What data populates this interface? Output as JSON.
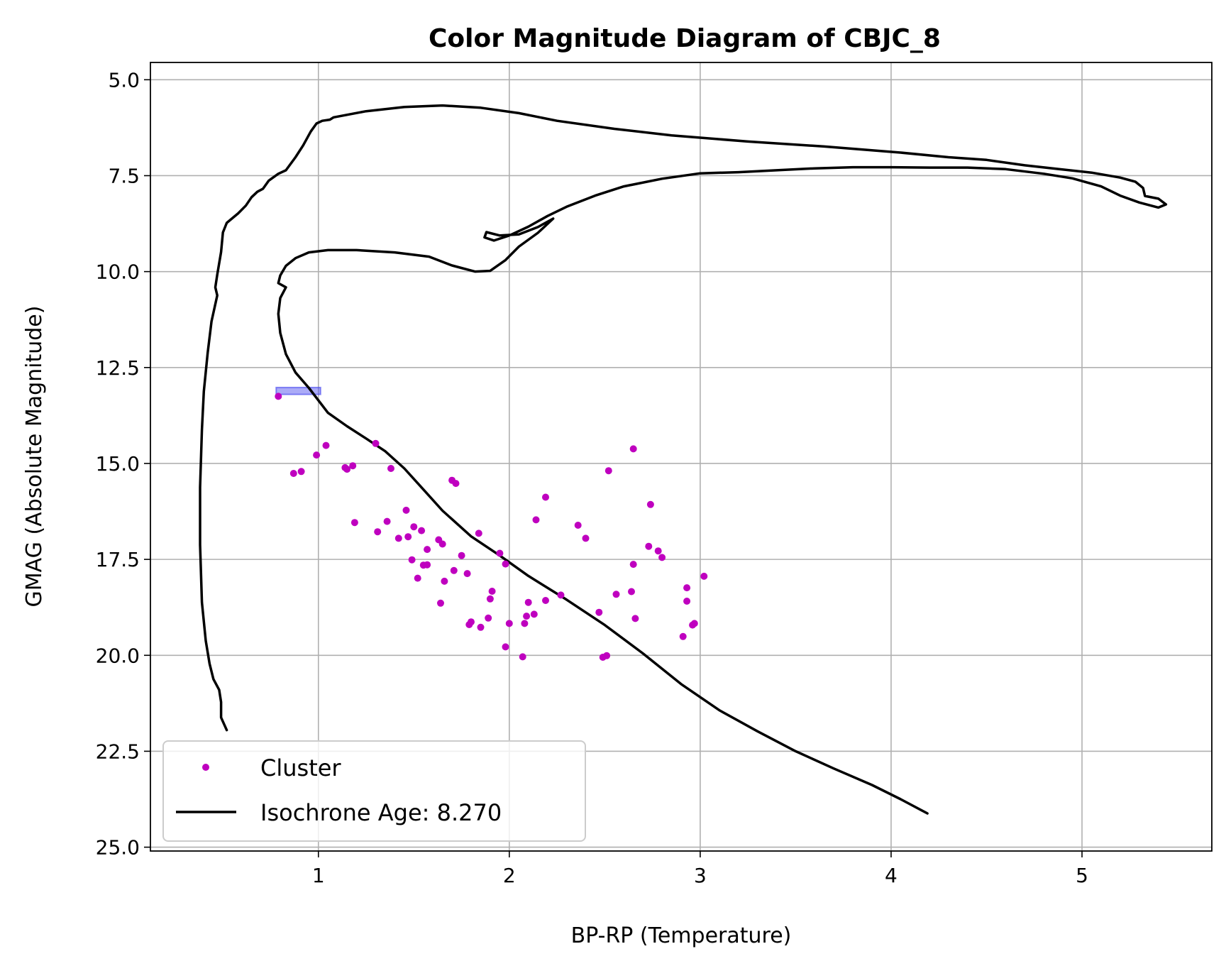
{
  "chart_data": {
    "type": "scatter",
    "title": "Color Magnitude Diagram of CBJC_8",
    "xlabel": "BP-RP (Temperature)",
    "ylabel": "GMAG (Absolute Magnitude)",
    "xlim": [
      0.12,
      5.68
    ],
    "ylim": [
      25.1,
      4.55
    ],
    "y_inverted": true,
    "grid": true,
    "legend_position": "lower-left",
    "x_ticks": [
      {
        "value": 1,
        "label": "1"
      },
      {
        "value": 2,
        "label": "2"
      },
      {
        "value": 3,
        "label": "3"
      },
      {
        "value": 4,
        "label": "4"
      },
      {
        "value": 5,
        "label": "5"
      }
    ],
    "y_ticks": [
      {
        "value": 5.0,
        "label": "5.0"
      },
      {
        "value": 7.5,
        "label": "7.5"
      },
      {
        "value": 10.0,
        "label": "10.0"
      },
      {
        "value": 12.5,
        "label": "12.5"
      },
      {
        "value": 15.0,
        "label": "15.0"
      },
      {
        "value": 17.5,
        "label": "17.5"
      },
      {
        "value": 20.0,
        "label": "20.0"
      },
      {
        "value": 22.5,
        "label": "22.5"
      },
      {
        "value": 25.0,
        "label": "25.0"
      }
    ],
    "series": [
      {
        "name": "Cluster",
        "kind": "scatter",
        "color": "#bf00bf",
        "points": [
          [
            0.79,
            13.25
          ],
          [
            0.87,
            15.26
          ],
          [
            0.91,
            15.21
          ],
          [
            0.99,
            14.78
          ],
          [
            1.04,
            14.53
          ],
          [
            1.14,
            15.11
          ],
          [
            1.15,
            15.15
          ],
          [
            1.18,
            15.06
          ],
          [
            1.19,
            16.54
          ],
          [
            1.3,
            14.48
          ],
          [
            1.31,
            16.78
          ],
          [
            1.36,
            16.51
          ],
          [
            1.38,
            15.13
          ],
          [
            1.42,
            16.95
          ],
          [
            1.46,
            16.22
          ],
          [
            1.47,
            16.91
          ],
          [
            1.49,
            17.51
          ],
          [
            1.5,
            16.65
          ],
          [
            1.52,
            17.99
          ],
          [
            1.54,
            16.75
          ],
          [
            1.55,
            17.65
          ],
          [
            1.57,
            17.64
          ],
          [
            1.57,
            17.24
          ],
          [
            1.63,
            16.99
          ],
          [
            1.64,
            18.64
          ],
          [
            1.65,
            17.1
          ],
          [
            1.66,
            18.07
          ],
          [
            1.7,
            15.44
          ],
          [
            1.71,
            17.79
          ],
          [
            1.72,
            15.52
          ],
          [
            1.75,
            17.4
          ],
          [
            1.78,
            17.87
          ],
          [
            1.79,
            19.2
          ],
          [
            1.8,
            19.13
          ],
          [
            1.84,
            16.82
          ],
          [
            1.85,
            19.27
          ],
          [
            1.89,
            19.03
          ],
          [
            1.9,
            18.53
          ],
          [
            1.91,
            18.33
          ],
          [
            1.95,
            17.34
          ],
          [
            1.98,
            17.62
          ],
          [
            1.98,
            19.78
          ],
          [
            2.0,
            19.17
          ],
          [
            2.07,
            20.04
          ],
          [
            2.08,
            19.17
          ],
          [
            2.09,
            18.98
          ],
          [
            2.1,
            18.62
          ],
          [
            2.13,
            18.93
          ],
          [
            2.14,
            16.47
          ],
          [
            2.19,
            15.88
          ],
          [
            2.19,
            18.57
          ],
          [
            2.27,
            18.43
          ],
          [
            2.36,
            16.61
          ],
          [
            2.4,
            16.95
          ],
          [
            2.47,
            18.88
          ],
          [
            2.49,
            20.05
          ],
          [
            2.51,
            20.01
          ],
          [
            2.52,
            15.19
          ],
          [
            2.56,
            18.41
          ],
          [
            2.64,
            18.34
          ],
          [
            2.65,
            14.62
          ],
          [
            2.65,
            17.63
          ],
          [
            2.66,
            19.04
          ],
          [
            2.73,
            17.16
          ],
          [
            2.74,
            16.07
          ],
          [
            2.78,
            17.28
          ],
          [
            2.8,
            17.45
          ],
          [
            2.91,
            19.51
          ],
          [
            2.93,
            18.24
          ],
          [
            2.93,
            18.59
          ],
          [
            2.96,
            19.21
          ],
          [
            2.97,
            19.17
          ],
          [
            3.02,
            17.94
          ]
        ]
      },
      {
        "name": "Isochrone Age: 8.270",
        "kind": "line",
        "color": "#000000",
        "points": [
          [
            0.52,
            21.95
          ],
          [
            0.49,
            21.62
          ],
          [
            0.49,
            21.22
          ],
          [
            0.48,
            20.9
          ],
          [
            0.45,
            20.62
          ],
          [
            0.43,
            20.22
          ],
          [
            0.41,
            19.62
          ],
          [
            0.39,
            18.62
          ],
          [
            0.38,
            17.12
          ],
          [
            0.38,
            15.62
          ],
          [
            0.39,
            14.12
          ],
          [
            0.4,
            13.12
          ],
          [
            0.42,
            12.12
          ],
          [
            0.44,
            11.3
          ],
          [
            0.47,
            10.62
          ],
          [
            0.46,
            10.41
          ],
          [
            0.47,
            10.08
          ],
          [
            0.49,
            9.49
          ],
          [
            0.5,
            8.98
          ],
          [
            0.52,
            8.73
          ],
          [
            0.58,
            8.48
          ],
          [
            0.62,
            8.28
          ],
          [
            0.65,
            8.06
          ],
          [
            0.68,
            7.92
          ],
          [
            0.71,
            7.84
          ],
          [
            0.74,
            7.63
          ],
          [
            0.79,
            7.45
          ],
          [
            0.83,
            7.36
          ],
          [
            0.88,
            7.02
          ],
          [
            0.92,
            6.71
          ],
          [
            0.96,
            6.35
          ],
          [
            0.99,
            6.14
          ],
          [
            1.02,
            6.07
          ],
          [
            1.06,
            6.04
          ],
          [
            1.08,
            5.98
          ],
          [
            1.09,
            5.97
          ],
          [
            1.25,
            5.82
          ],
          [
            1.45,
            5.71
          ],
          [
            1.65,
            5.67
          ],
          [
            1.85,
            5.73
          ],
          [
            2.05,
            5.87
          ],
          [
            2.25,
            6.07
          ],
          [
            2.55,
            6.28
          ],
          [
            2.85,
            6.45
          ],
          [
            3.25,
            6.61
          ],
          [
            3.65,
            6.74
          ],
          [
            4.05,
            6.9
          ],
          [
            4.3,
            7.02
          ],
          [
            4.5,
            7.09
          ],
          [
            4.7,
            7.23
          ],
          [
            4.88,
            7.33
          ],
          [
            5.05,
            7.42
          ],
          [
            5.2,
            7.55
          ],
          [
            5.28,
            7.66
          ],
          [
            5.32,
            7.82
          ],
          [
            5.33,
            8.03
          ],
          [
            5.4,
            8.1
          ],
          [
            5.44,
            8.25
          ],
          [
            5.4,
            8.33
          ],
          [
            5.3,
            8.2
          ],
          [
            5.2,
            8.02
          ],
          [
            5.1,
            7.78
          ],
          [
            4.95,
            7.57
          ],
          [
            4.8,
            7.45
          ],
          [
            4.6,
            7.33
          ],
          [
            4.4,
            7.29
          ],
          [
            4.2,
            7.29
          ],
          [
            4.0,
            7.28
          ],
          [
            3.8,
            7.28
          ],
          [
            3.6,
            7.31
          ],
          [
            3.4,
            7.36
          ],
          [
            3.2,
            7.41
          ],
          [
            3.0,
            7.44
          ],
          [
            2.8,
            7.58
          ],
          [
            2.6,
            7.78
          ],
          [
            2.45,
            8.02
          ],
          [
            2.3,
            8.31
          ],
          [
            2.2,
            8.55
          ],
          [
            2.1,
            8.83
          ],
          [
            2.0,
            9.06
          ],
          [
            1.92,
            9.19
          ],
          [
            1.87,
            9.11
          ],
          [
            1.88,
            8.97
          ],
          [
            1.95,
            9.06
          ],
          [
            2.05,
            9.03
          ],
          [
            2.15,
            8.84
          ],
          [
            2.23,
            8.62
          ],
          [
            2.15,
            8.99
          ],
          [
            2.05,
            9.35
          ],
          [
            1.98,
            9.7
          ],
          [
            1.9,
            9.98
          ],
          [
            1.82,
            10.0
          ],
          [
            1.7,
            9.84
          ],
          [
            1.58,
            9.61
          ],
          [
            1.4,
            9.5
          ],
          [
            1.2,
            9.44
          ],
          [
            1.05,
            9.44
          ],
          [
            0.95,
            9.5
          ],
          [
            0.88,
            9.65
          ],
          [
            0.83,
            9.85
          ],
          [
            0.8,
            10.1
          ],
          [
            0.79,
            10.3
          ],
          [
            0.83,
            10.41
          ],
          [
            0.8,
            10.69
          ],
          [
            0.79,
            11.1
          ],
          [
            0.8,
            11.6
          ],
          [
            0.83,
            12.15
          ],
          [
            0.88,
            12.63
          ],
          [
            0.95,
            13.03
          ],
          [
            1.05,
            13.68
          ],
          [
            1.15,
            14.03
          ],
          [
            1.25,
            14.35
          ],
          [
            1.35,
            14.68
          ],
          [
            1.45,
            15.13
          ],
          [
            1.55,
            15.68
          ],
          [
            1.65,
            16.23
          ],
          [
            1.8,
            16.9
          ],
          [
            1.95,
            17.4
          ],
          [
            2.1,
            17.93
          ],
          [
            2.3,
            18.55
          ],
          [
            2.5,
            19.21
          ],
          [
            2.7,
            19.95
          ],
          [
            2.9,
            20.75
          ],
          [
            3.1,
            21.43
          ],
          [
            3.3,
            21.98
          ],
          [
            3.5,
            22.5
          ],
          [
            3.7,
            22.95
          ],
          [
            3.9,
            23.38
          ],
          [
            4.05,
            23.75
          ],
          [
            4.19,
            24.12
          ]
        ]
      }
    ],
    "highlight_box": {
      "color": "#4444ee",
      "x_range": [
        0.79,
        1.0
      ],
      "y_range": [
        13.02,
        13.2
      ]
    }
  }
}
